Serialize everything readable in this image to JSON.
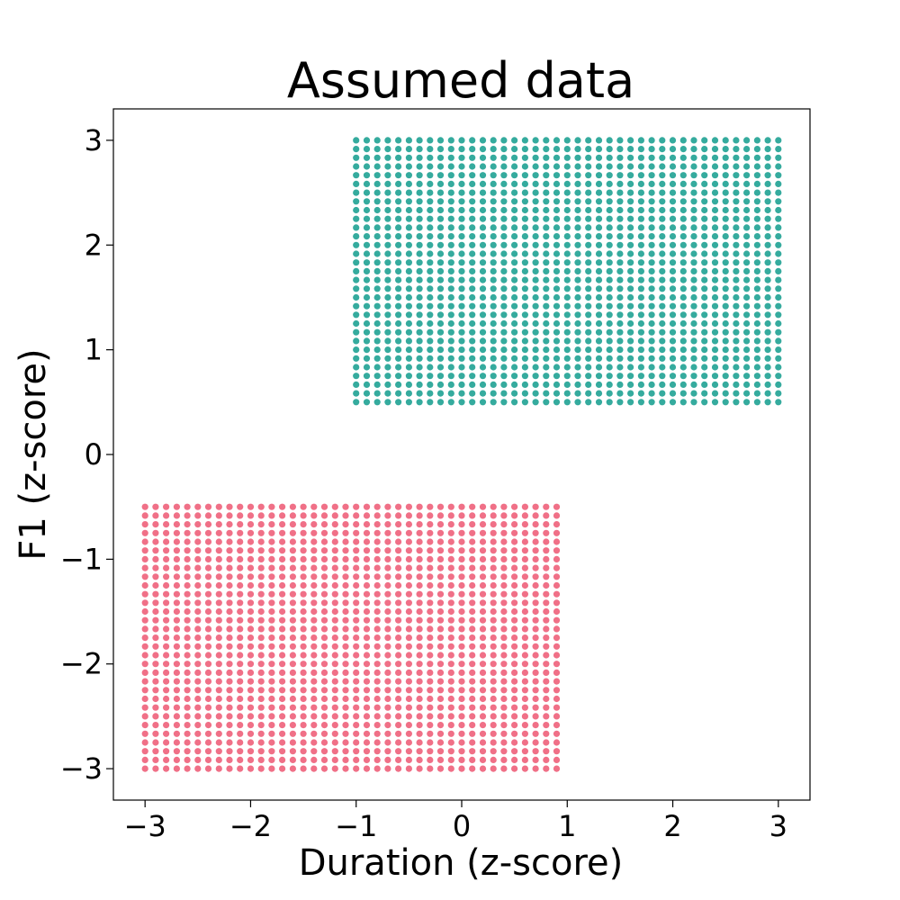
{
  "chart_data": {
    "type": "scatter",
    "title": "Assumed data",
    "xlabel": "Duration (z-score)",
    "ylabel": "F1 (z-score)",
    "xlim": [
      -3.3,
      3.3
    ],
    "ylim": [
      -3.3,
      3.3
    ],
    "xticks": [
      -3,
      -2,
      -1,
      0,
      1,
      2,
      3
    ],
    "yticks": [
      -3,
      -2,
      -1,
      0,
      1,
      2,
      3
    ],
    "xtick_labels": [
      "−3",
      "−2",
      "−1",
      "0",
      "1",
      "2",
      "3"
    ],
    "ytick_labels": [
      "−3",
      "−2",
      "−1",
      "0",
      "1",
      "2",
      "3"
    ],
    "grid": false,
    "legend": "none",
    "series": [
      {
        "color": "#f07087",
        "x_range": [
          -3.0,
          0.9
        ],
        "y_range": [
          -3.0,
          -0.5
        ],
        "x_step": 0.1,
        "y_step": 0.083,
        "description_of_points": "regular grid of points over x in [-3.0, 0.9], y in [-3.0, -0.5]"
      },
      {
        "color": "#35ab9e",
        "x_range": [
          -1.0,
          3.0
        ],
        "y_range": [
          0.5,
          3.0
        ],
        "x_step": 0.1,
        "y_step": 0.083,
        "description_of_points": "regular grid of points over x in [-1.0, 3.0], y in [0.5, 3.0]"
      }
    ]
  }
}
